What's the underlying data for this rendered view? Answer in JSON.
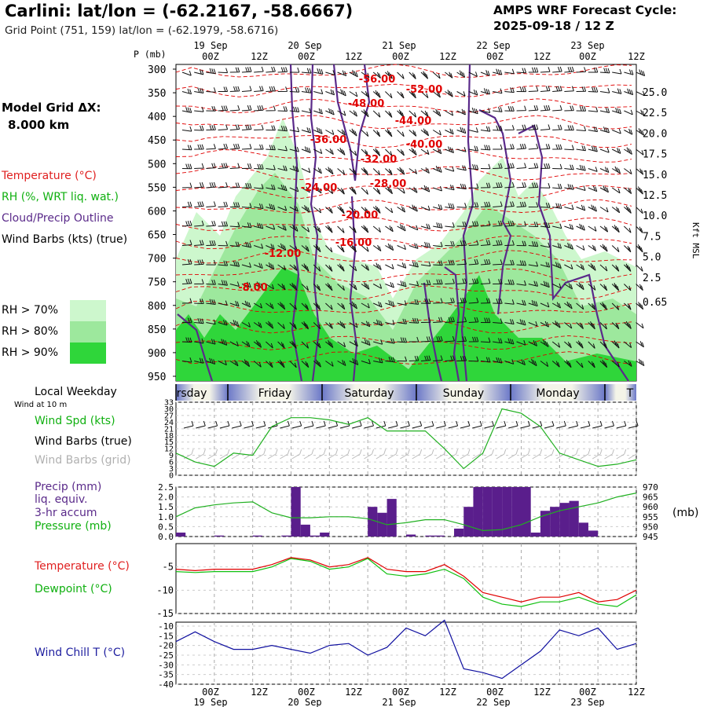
{
  "header": {
    "title": "Carlini:  lat/lon = (-62.2167, -58.6667)",
    "subtitle": "Grid Point (751, 159) lat/lon = (-62.1979, -58.6716)",
    "cycle_line1": "AMPS WRF Forecast Cycle:",
    "cycle_line2": "2025-09-18 / 12  Z"
  },
  "left_panel": {
    "grid_line1": "Model Grid ΔX:",
    "grid_line2": "8.000 km",
    "legend_temperature": "Temperature (°C)",
    "legend_rh": "RH (%, WRT liq. wat.)",
    "legend_cloud": "Cloud/Precip Outline",
    "legend_wind": "Wind Barbs (kts) (true)",
    "rh_70": "RH > 70%",
    "rh_80": "RH > 80%",
    "rh_90": "RH > 90%",
    "local_weekday": "Local Weekday",
    "wind_at_10m": "Wind at 10 m",
    "wind_spd": "Wind Spd (kts)",
    "wind_barbs_true": "Wind Barbs (true)",
    "wind_barbs_grid": "Wind Barbs (grid)",
    "precip_1": "Precip (mm)",
    "precip_2": "liq. equiv.",
    "precip_3": "3-hr accum",
    "pressure": "Pressure (mb)",
    "temperature": "Temperature (°C)",
    "dewpoint": "Dewpoint (°C)",
    "wind_chill": "Wind Chill T (°C)"
  },
  "colors": {
    "rh70": "#cdf7cd",
    "rh80": "#9de89d",
    "rh90": "#2fd63a",
    "temperature": "#e00000",
    "dewpoint": "#10c010",
    "windspeed": "#20b020",
    "precip": "#5a1e8c",
    "pressure": "#20b020",
    "windchill": "#1010a0",
    "cloud_outline": "#5a2a8a"
  },
  "chart_data": [
    {
      "type": "heatmap",
      "name": "time-height cross section",
      "p_axis_label": "P (mb)",
      "pressure_levels": [
        300,
        350,
        400,
        450,
        500,
        550,
        600,
        650,
        700,
        750,
        800,
        850,
        900,
        950
      ],
      "height_axis_label": "Kft MSL",
      "height_ticks": [
        "25.0",
        "22.5",
        "20.0",
        "17.5",
        "15.0",
        "12.5",
        "10.0",
        "7.5",
        "5.0",
        "2.5",
        "0.65"
      ],
      "top_time_labels": [
        "00Z",
        "12Z",
        "00Z",
        "12Z",
        "00Z",
        "12Z",
        "00Z",
        "12Z",
        "00Z",
        "12Z"
      ],
      "date_labels": [
        "19 Sep",
        "20 Sep",
        "21 Sep",
        "22 Sep",
        "23 Sep"
      ],
      "temperature_contour_labels": [
        "-56.00",
        "-52.00",
        "-48.00",
        "-44.00",
        "-40.00",
        "-36.00",
        "-32.00",
        "-28.00",
        "-24.00",
        "-20.00",
        "-16.00",
        "-12.00",
        "-8.00"
      ]
    },
    {
      "type": "line",
      "name": "wind speed",
      "weekdays": [
        "rsday",
        "Friday",
        "Saturday",
        "Sunday",
        "Monday",
        "T"
      ],
      "y_ticks": [
        33,
        30,
        27,
        24,
        21,
        18,
        15,
        12,
        9,
        6,
        3,
        0
      ],
      "ylim": [
        0,
        33
      ],
      "x_hours": [
        0,
        6,
        12,
        18,
        24,
        30,
        36,
        42,
        48,
        54,
        60,
        66,
        72,
        78,
        84,
        90,
        96,
        102,
        108,
        114,
        120,
        126,
        132,
        138,
        144
      ],
      "values": [
        10,
        6,
        4,
        10,
        9,
        22,
        26,
        26,
        25,
        23,
        26,
        20,
        20,
        20,
        12,
        3,
        10,
        30,
        28,
        22,
        10,
        7,
        4,
        5,
        7
      ]
    },
    {
      "type": "bar",
      "name": "precip and pressure",
      "y_ticks": [
        "2.5",
        "2.0",
        "1.5",
        "1.0",
        "0.5",
        "0.0"
      ],
      "ylim": [
        0,
        2.5
      ],
      "y2_ticks": [
        "970",
        "965",
        "960",
        "955",
        "950",
        "945"
      ],
      "y2lim": [
        945,
        970
      ],
      "y2_label": "(mb)",
      "precip_hours": [
        0,
        3,
        6,
        9,
        12,
        15,
        18,
        21,
        24,
        27,
        30,
        33,
        36,
        39,
        42,
        45,
        48,
        51,
        54,
        57,
        60,
        63,
        66,
        69,
        72,
        75,
        78,
        81,
        84,
        87,
        90,
        93,
        96,
        99,
        102,
        105,
        108,
        111,
        114,
        117,
        120,
        123,
        126,
        129,
        132,
        135,
        138,
        141
      ],
      "precip_values": [
        0.2,
        0,
        0,
        0,
        0.05,
        0,
        0,
        0,
        0.05,
        0,
        0,
        0.05,
        2.5,
        0.6,
        0.05,
        0.2,
        0,
        0,
        0,
        0,
        1.5,
        1.2,
        1.9,
        0,
        0.1,
        0,
        0.05,
        0.05,
        0,
        0.4,
        1.5,
        2.5,
        2.5,
        2.5,
        2.5,
        2.5,
        2.5,
        0.2,
        1.3,
        1.5,
        1.7,
        1.8,
        0.7,
        0.3,
        0,
        0,
        0,
        0
      ],
      "pressure_hours": [
        0,
        6,
        12,
        18,
        24,
        30,
        36,
        42,
        48,
        54,
        60,
        66,
        72,
        78,
        84,
        90,
        96,
        102,
        108,
        114,
        120,
        126,
        132,
        138,
        144
      ],
      "pressure_values": [
        955,
        959.5,
        961,
        962,
        962.5,
        957,
        954.5,
        954.5,
        955,
        955,
        954,
        951,
        952,
        953.5,
        953.5,
        951,
        948,
        948.5,
        951,
        955,
        958,
        960,
        962,
        965,
        967
      ]
    },
    {
      "type": "line",
      "name": "temperature and dewpoint",
      "y_ticks": [
        -5,
        -10,
        -15
      ],
      "ylim": [
        -15,
        0
      ],
      "x_hours": [
        0,
        6,
        12,
        18,
        24,
        30,
        36,
        42,
        48,
        54,
        60,
        66,
        72,
        78,
        84,
        90,
        96,
        102,
        108,
        114,
        120,
        126,
        132,
        138,
        144
      ],
      "series": [
        {
          "name": "Temperature",
          "values": [
            -5.5,
            -5.8,
            -5.5,
            -5.5,
            -5.5,
            -4.5,
            -3,
            -3.5,
            -5,
            -4.5,
            -3,
            -5.5,
            -6,
            -6,
            -4.5,
            -7,
            -10.5,
            -11.5,
            -12.5,
            -11.5,
            -11.5,
            -10.5,
            -12.5,
            -12,
            -10
          ]
        },
        {
          "name": "Dewpoint",
          "values": [
            -6,
            -6.2,
            -6,
            -6,
            -6,
            -5,
            -3.2,
            -3.8,
            -5.5,
            -5,
            -3.2,
            -6.5,
            -7,
            -6.5,
            -5.5,
            -7.5,
            -11.5,
            -13,
            -13.5,
            -12.5,
            -12.5,
            -11.5,
            -13,
            -13.5,
            -11
          ]
        }
      ]
    },
    {
      "type": "line",
      "name": "wind chill",
      "y_ticks": [
        -10,
        -15,
        -20,
        -25,
        -30,
        -35,
        -40
      ],
      "ylim": [
        -40,
        -10
      ],
      "x_hours": [
        0,
        6,
        12,
        18,
        24,
        30,
        36,
        42,
        48,
        54,
        60,
        66,
        72,
        78,
        84,
        90,
        96,
        102,
        108,
        114,
        120,
        126,
        132,
        138,
        144
      ],
      "values": [
        -18,
        -13,
        -18,
        -22,
        -22,
        -20,
        -22,
        -24,
        -20,
        -19,
        -25,
        -21,
        -11,
        -15,
        -7,
        -32,
        -34,
        -37,
        -30,
        -23,
        -12,
        -15,
        -11,
        -22,
        -19
      ],
      "bottom_time_labels": [
        "00Z",
        "12Z",
        "00Z",
        "12Z",
        "00Z",
        "12Z",
        "00Z",
        "12Z",
        "00Z",
        "12Z"
      ],
      "bottom_date_labels": [
        "19 Sep",
        "20 Sep",
        "21 Sep",
        "22 Sep",
        "23 Sep"
      ]
    }
  ]
}
